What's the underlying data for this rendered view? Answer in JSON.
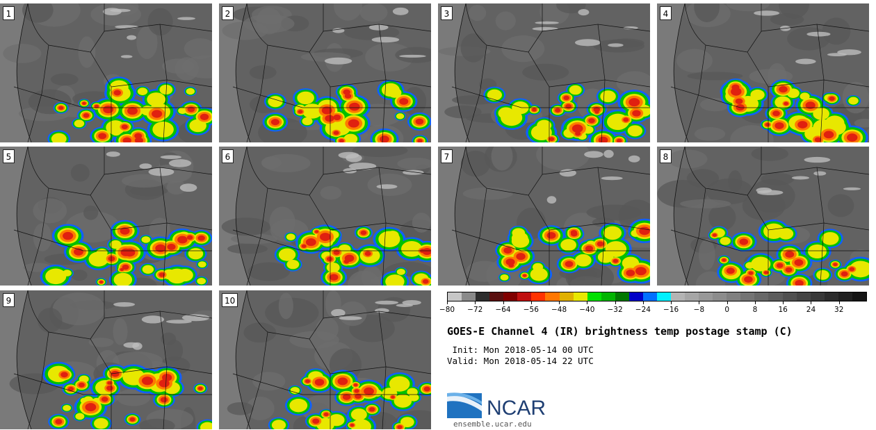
{
  "panels": [
    {
      "label": "1"
    },
    {
      "label": "2"
    },
    {
      "label": "3"
    },
    {
      "label": "4"
    },
    {
      "label": "5"
    },
    {
      "label": "6"
    },
    {
      "label": "7"
    },
    {
      "label": "8"
    },
    {
      "label": "9"
    },
    {
      "label": "10"
    }
  ],
  "colorbar": {
    "colors": [
      "#c6c6c6",
      "#8a8a8a",
      "#2e2e2e",
      "#5a1010",
      "#800000",
      "#c01010",
      "#ff3300",
      "#ff7700",
      "#e0b000",
      "#e8e800",
      "#00e000",
      "#00b400",
      "#007800",
      "#0000c8",
      "#0070ff",
      "#00f0ff",
      "#b4b4b4",
      "#a6a6a6",
      "#989898",
      "#8c8c8c",
      "#808080",
      "#747474",
      "#686868",
      "#5c5c5c",
      "#505050",
      "#444444",
      "#383838",
      "#2c2c2c",
      "#202020",
      "#141414"
    ],
    "tick_labels": [
      "−80",
      "−72",
      "−64",
      "−56",
      "−48",
      "−40",
      "−32",
      "−24",
      "−16",
      "−8",
      "0",
      "8",
      "16",
      "24",
      "32"
    ]
  },
  "title": "GOES-E Channel 4 (IR) brightness temp postage stamp (C)",
  "init_line": " Init: Mon 2018-05-14 00 UTC",
  "valid_line": "Valid: Mon 2018-05-14 22 UTC",
  "logo": {
    "name": "NCAR",
    "url": "ensemble.ucar.edu"
  }
}
